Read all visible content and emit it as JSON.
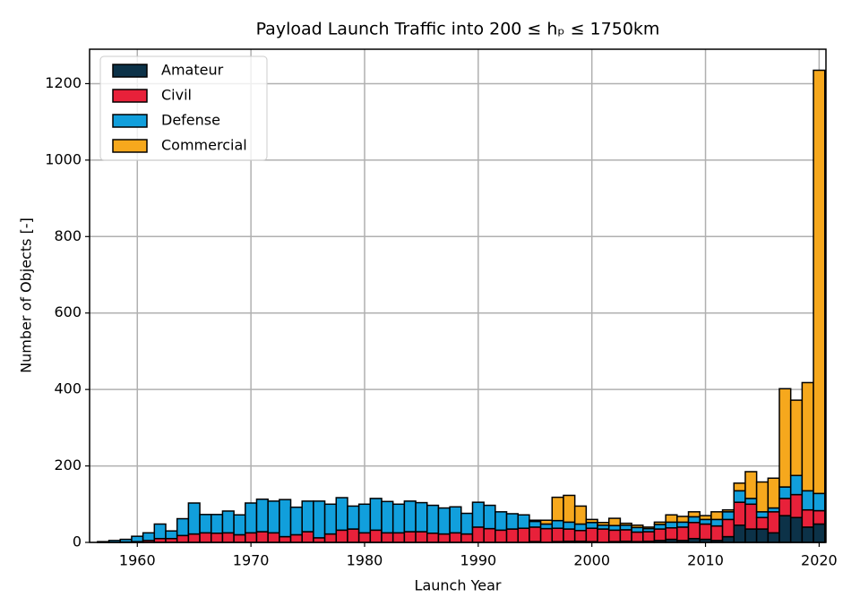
{
  "chart_data": {
    "type": "bar",
    "title": "Payload Launch Traffic into 200 ≤ hₚ ≤ 1750km",
    "x_label": "Launch Year",
    "y_label": "Number of Objects [-]",
    "stacked": true,
    "grid": true,
    "legend": "upper left",
    "x": [
      1957,
      1958,
      1959,
      1960,
      1961,
      1962,
      1963,
      1964,
      1965,
      1966,
      1967,
      1968,
      1969,
      1970,
      1971,
      1972,
      1973,
      1974,
      1975,
      1976,
      1977,
      1978,
      1979,
      1980,
      1981,
      1982,
      1983,
      1984,
      1985,
      1986,
      1987,
      1988,
      1989,
      1990,
      1991,
      1992,
      1993,
      1994,
      1995,
      1996,
      1997,
      1998,
      1999,
      2000,
      2001,
      2002,
      2003,
      2004,
      2005,
      2006,
      2007,
      2008,
      2009,
      2010,
      2011,
      2012,
      2013,
      2014,
      2015,
      2016,
      2017,
      2018,
      2019,
      2020
    ],
    "series": [
      {
        "name": "Amateur",
        "color": "#0c3248",
        "values": [
          0,
          0,
          0,
          0,
          0,
          0,
          0,
          0,
          0,
          0,
          0,
          0,
          0,
          0,
          0,
          0,
          0,
          0,
          0,
          0,
          0,
          0,
          0,
          0,
          0,
          0,
          0,
          0,
          0,
          0,
          0,
          0,
          0,
          0,
          0,
          0,
          0,
          0,
          2,
          0,
          2,
          3,
          3,
          2,
          0,
          2,
          3,
          2,
          3,
          5,
          8,
          5,
          10,
          8,
          5,
          15,
          45,
          35,
          35,
          25,
          70,
          65,
          40,
          48
        ]
      },
      {
        "name": "Civil",
        "color": "#e8213a",
        "values": [
          0,
          0,
          1,
          2,
          5,
          10,
          10,
          18,
          22,
          25,
          24,
          25,
          20,
          25,
          28,
          25,
          15,
          20,
          28,
          12,
          22,
          32,
          35,
          25,
          32,
          25,
          25,
          28,
          28,
          24,
          22,
          25,
          22,
          40,
          36,
          32,
          35,
          37,
          38,
          36,
          35,
          32,
          28,
          35,
          35,
          30,
          30,
          25,
          25,
          30,
          30,
          35,
          42,
          40,
          38,
          45,
          60,
          65,
          30,
          55,
          45,
          60,
          45,
          35
        ]
      },
      {
        "name": "Defense",
        "color": "#119fdc",
        "values": [
          2,
          5,
          7,
          14,
          20,
          38,
          20,
          44,
          81,
          48,
          49,
          57,
          52,
          78,
          85,
          83,
          97,
          72,
          80,
          96,
          78,
          85,
          60,
          75,
          83,
          82,
          75,
          80,
          76,
          73,
          68,
          68,
          54,
          65,
          61,
          48,
          40,
          35,
          15,
          12,
          20,
          18,
          17,
          15,
          10,
          12,
          12,
          12,
          8,
          12,
          15,
          13,
          15,
          12,
          17,
          20,
          30,
          15,
          15,
          10,
          30,
          50,
          50,
          45
        ]
      },
      {
        "name": "Commercial",
        "color": "#f6a81d",
        "values": [
          0,
          0,
          0,
          0,
          0,
          0,
          0,
          0,
          0,
          0,
          0,
          0,
          0,
          0,
          0,
          0,
          0,
          0,
          0,
          0,
          0,
          0,
          0,
          0,
          0,
          0,
          0,
          0,
          0,
          0,
          0,
          0,
          0,
          0,
          0,
          0,
          0,
          0,
          3,
          10,
          61,
          70,
          47,
          8,
          7,
          19,
          5,
          6,
          4,
          6,
          19,
          15,
          13,
          10,
          20,
          5,
          20,
          70,
          78,
          78,
          257,
          197,
          283,
          1107
        ]
      }
    ],
    "xlim": [
      1955.8,
      2020.6
    ],
    "xticks": [
      1960,
      1970,
      1980,
      1990,
      2000,
      2010,
      2020
    ],
    "ylim": [
      0,
      1290
    ],
    "yticks": [
      0,
      200,
      400,
      600,
      800,
      1000,
      1200
    ]
  }
}
